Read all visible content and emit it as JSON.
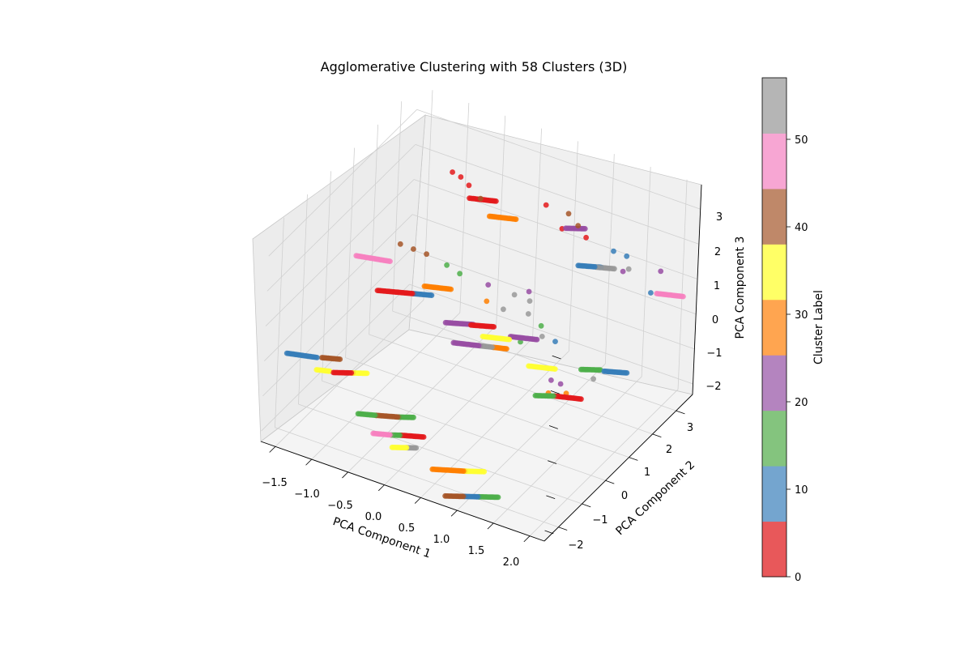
{
  "chart_data": {
    "type": "scatter",
    "projection": "3d",
    "title": "Agglomerative Clustering with 58 Clusters (3D)",
    "xlabel": "PCA Component 1",
    "ylabel": "PCA Component 2",
    "zlabel": "PCA Component 3",
    "x_ticks": [
      "−1.5",
      "−1.0",
      "−0.5",
      "0.0",
      "0.5",
      "1.0",
      "1.5",
      "2.0"
    ],
    "y_ticks": [
      "−2",
      "−1",
      "0",
      "1",
      "2",
      "3"
    ],
    "z_ticks": [
      "−2",
      "−1",
      "0",
      "1",
      "2",
      "3"
    ],
    "xlim": [
      -1.7,
      2.2
    ],
    "ylim": [
      -2.6,
      3.7
    ],
    "zlim": [
      -2.3,
      3.7
    ],
    "grid": true,
    "colormap": "Set1",
    "colorbar": {
      "label": "Cluster Label",
      "ticks": [
        "0",
        "10",
        "20",
        "30",
        "40",
        "50"
      ],
      "range": [
        0,
        57
      ],
      "colors": [
        "#e8585a",
        "#74a5cf",
        "#84c47e",
        "#b484bf",
        "#ffa550",
        "#ffff66",
        "#bf8869",
        "#f7a6d3",
        "#b5b5b5"
      ]
    },
    "cluster_colors": {
      "red": "#e41a1c",
      "blue": "#377eb8",
      "green": "#4daf4a",
      "purple": "#984ea3",
      "orange": "#ff7f00",
      "yellow": "#ffff33",
      "brown": "#a65628",
      "pink": "#f781bf",
      "grey": "#999999"
    },
    "segments": [
      {
        "color": "blue",
        "x": [
          -1.55,
          -1.2
        ],
        "y": [
          -2.1,
          -1.9
        ],
        "z": [
          0.0,
          0.0
        ]
      },
      {
        "color": "brown",
        "x": [
          -1.15,
          -0.95
        ],
        "y": [
          -1.85,
          -1.7
        ],
        "z": [
          0.0,
          0.0
        ]
      },
      {
        "color": "yellow",
        "x": [
          -1.2,
          -1.05
        ],
        "y": [
          -1.9,
          -1.8
        ],
        "z": [
          -0.35,
          -0.35
        ]
      },
      {
        "color": "red",
        "x": [
          -1.0,
          -0.8
        ],
        "y": [
          -1.8,
          -1.6
        ],
        "z": [
          -0.35,
          -0.35
        ]
      },
      {
        "color": "yellow",
        "x": [
          -0.8,
          -0.65
        ],
        "y": [
          -1.6,
          -1.45
        ],
        "z": [
          -0.35,
          -0.35
        ]
      },
      {
        "color": "green",
        "x": [
          -0.55,
          -0.35
        ],
        "y": [
          -2.1,
          -1.95
        ],
        "z": [
          -1.0,
          -1.0
        ]
      },
      {
        "color": "brown",
        "x": [
          -0.35,
          -0.1
        ],
        "y": [
          -1.95,
          -1.75
        ],
        "z": [
          -1.0,
          -1.0
        ]
      },
      {
        "color": "green",
        "x": [
          -0.1,
          0.05
        ],
        "y": [
          -1.75,
          -1.6
        ],
        "z": [
          -1.0,
          -1.0
        ]
      },
      {
        "color": "pink",
        "x": [
          -0.35,
          -0.15
        ],
        "y": [
          -2.05,
          -1.9
        ],
        "z": [
          -1.45,
          -1.45
        ]
      },
      {
        "color": "green",
        "x": [
          -0.15,
          -0.05
        ],
        "y": [
          -1.9,
          -1.8
        ],
        "z": [
          -1.45,
          -1.45
        ]
      },
      {
        "color": "red",
        "x": [
          -0.05,
          0.2
        ],
        "y": [
          -1.8,
          -1.6
        ],
        "z": [
          -1.45,
          -1.45
        ]
      },
      {
        "color": "yellow",
        "x": [
          -0.1,
          0.05
        ],
        "y": [
          -2.0,
          -1.85
        ],
        "z": [
          -1.7,
          -1.7
        ]
      },
      {
        "color": "grey",
        "x": [
          0.05,
          0.15
        ],
        "y": [
          -1.85,
          -1.75
        ],
        "z": [
          -1.7,
          -1.7
        ]
      },
      {
        "color": "orange",
        "x": [
          0.55,
          0.9
        ],
        "y": [
          -2.3,
          -2.0
        ],
        "z": [
          -1.65,
          -1.65
        ]
      },
      {
        "color": "yellow",
        "x": [
          0.9,
          1.1
        ],
        "y": [
          -2.0,
          -1.8
        ],
        "z": [
          -1.65,
          -1.65
        ]
      },
      {
        "color": "brown",
        "x": [
          0.8,
          1.0
        ],
        "y": [
          -2.5,
          -2.3
        ],
        "z": [
          -2.1,
          -2.1
        ]
      },
      {
        "color": "blue",
        "x": [
          1.0,
          1.15
        ],
        "y": [
          -2.3,
          -2.15
        ],
        "z": [
          -2.1,
          -2.1
        ]
      },
      {
        "color": "green",
        "x": [
          1.15,
          1.35
        ],
        "y": [
          -2.15,
          -1.95
        ],
        "z": [
          -2.1,
          -2.1
        ]
      },
      {
        "color": "pink",
        "x": [
          -1.4,
          -1.0
        ],
        "y": [
          0.3,
          0.5
        ],
        "z": [
          1.3,
          1.3
        ]
      },
      {
        "color": "red",
        "x": [
          -1.0,
          -0.6
        ],
        "y": [
          0.0,
          0.3
        ],
        "z": [
          0.8,
          0.8
        ]
      },
      {
        "color": "blue",
        "x": [
          -0.6,
          -0.4
        ],
        "y": [
          0.3,
          0.45
        ],
        "z": [
          0.8,
          0.8
        ]
      },
      {
        "color": "orange",
        "x": [
          -0.55,
          -0.25
        ],
        "y": [
          0.6,
          0.8
        ],
        "z": [
          0.85,
          0.85
        ]
      },
      {
        "color": "purple",
        "x": [
          -0.15,
          0.15
        ],
        "y": [
          0.3,
          0.55
        ],
        "z": [
          0.3,
          0.3
        ]
      },
      {
        "color": "red",
        "x": [
          0.15,
          0.4
        ],
        "y": [
          0.45,
          0.65
        ],
        "z": [
          0.35,
          0.35
        ]
      },
      {
        "color": "yellow",
        "x": [
          0.3,
          0.6
        ],
        "y": [
          0.5,
          0.7
        ],
        "z": [
          0.1,
          0.1
        ]
      },
      {
        "color": "purple",
        "x": [
          0.0,
          0.3
        ],
        "y": [
          0.2,
          0.4
        ],
        "z": [
          -0.1,
          -0.1
        ]
      },
      {
        "color": "grey",
        "x": [
          0.3,
          0.45
        ],
        "y": [
          0.4,
          0.5
        ],
        "z": [
          -0.1,
          -0.1
        ]
      },
      {
        "color": "orange",
        "x": [
          0.45,
          0.6
        ],
        "y": [
          0.5,
          0.6
        ],
        "z": [
          -0.1,
          -0.1
        ]
      },
      {
        "color": "purple",
        "x": [
          0.6,
          0.9
        ],
        "y": [
          0.75,
          0.95
        ],
        "z": [
          0.15,
          0.15
        ]
      },
      {
        "color": "yellow",
        "x": [
          1.0,
          1.3
        ],
        "y": [
          0.3,
          0.5
        ],
        "z": [
          -0.1,
          -0.1
        ]
      },
      {
        "color": "green",
        "x": [
          1.2,
          1.4
        ],
        "y": [
          0.0,
          0.2
        ],
        "z": [
          -0.6,
          -0.6
        ]
      },
      {
        "color": "red",
        "x": [
          1.4,
          1.7
        ],
        "y": [
          0.2,
          0.4
        ],
        "z": [
          -0.6,
          -0.6
        ]
      },
      {
        "color": "green",
        "x": [
          1.5,
          1.7
        ],
        "y": [
          1.0,
          1.2
        ],
        "z": [
          -0.3,
          -0.3
        ]
      },
      {
        "color": "blue",
        "x": [
          1.75,
          2.0
        ],
        "y": [
          1.2,
          1.4
        ],
        "z": [
          -0.3,
          -0.3
        ]
      },
      {
        "color": "red",
        "x": [
          -0.6,
          -0.3
        ],
        "y": [
          2.6,
          2.8
        ],
        "z": [
          2.0,
          2.0
        ]
      },
      {
        "color": "orange",
        "x": [
          -0.35,
          -0.05
        ],
        "y": [
          2.7,
          2.9
        ],
        "z": [
          1.6,
          1.6
        ]
      },
      {
        "color": "purple",
        "x": [
          0.6,
          0.8
        ],
        "y": [
          3.0,
          3.2
        ],
        "z": [
          1.75,
          1.75
        ]
      },
      {
        "color": "blue",
        "x": [
          0.85,
          1.1
        ],
        "y": [
          2.8,
          3.0
        ],
        "z": [
          1.0,
          1.0
        ]
      },
      {
        "color": "grey",
        "x": [
          1.05,
          1.25
        ],
        "y": [
          2.95,
          3.1
        ],
        "z": [
          1.0,
          1.0
        ]
      },
      {
        "color": "pink",
        "x": [
          1.9,
          2.2
        ],
        "y": [
          2.9,
          3.1
        ],
        "z": [
          0.9,
          0.9
        ]
      }
    ],
    "scattered": [
      {
        "color": "red",
        "x": -0.8,
        "y": 2.45,
        "z": 2.7
      },
      {
        "color": "red",
        "x": -0.7,
        "y": 2.5,
        "z": 2.6
      },
      {
        "color": "red",
        "x": -0.6,
        "y": 2.55,
        "z": 2.4
      },
      {
        "color": "brown",
        "x": -0.45,
        "y": 2.6,
        "z": 2.1
      },
      {
        "color": "red",
        "x": 0.35,
        "y": 2.9,
        "z": 2.3
      },
      {
        "color": "brown",
        "x": 0.6,
        "y": 3.1,
        "z": 2.1
      },
      {
        "color": "red",
        "x": 0.55,
        "y": 3.0,
        "z": 1.7
      },
      {
        "color": "brown",
        "x": 0.75,
        "y": 3.05,
        "z": 1.9
      },
      {
        "color": "red",
        "x": 0.85,
        "y": 3.1,
        "z": 1.6
      },
      {
        "color": "blue",
        "x": 1.2,
        "y": 3.2,
        "z": 1.4
      },
      {
        "color": "blue",
        "x": 1.35,
        "y": 3.3,
        "z": 1.3
      },
      {
        "color": "grey",
        "x": 1.4,
        "y": 3.25,
        "z": 1.0
      },
      {
        "color": "purple",
        "x": 1.4,
        "y": 3.0,
        "z": 1.1
      },
      {
        "color": "purple",
        "x": 1.85,
        "y": 3.2,
        "z": 1.3
      },
      {
        "color": "blue",
        "x": 1.85,
        "y": 2.8,
        "z": 0.95
      },
      {
        "color": "brown",
        "x": -0.9,
        "y": 0.6,
        "z": 1.8
      },
      {
        "color": "brown",
        "x": -0.75,
        "y": 0.7,
        "z": 1.7
      },
      {
        "color": "brown",
        "x": -0.6,
        "y": 0.8,
        "z": 1.6
      },
      {
        "color": "green",
        "x": -0.35,
        "y": 0.9,
        "z": 1.4
      },
      {
        "color": "green",
        "x": -0.2,
        "y": 1.0,
        "z": 1.2
      },
      {
        "color": "purple",
        "x": 0.1,
        "y": 1.3,
        "z": 0.9
      },
      {
        "color": "grey",
        "x": 0.4,
        "y": 1.5,
        "z": 0.7
      },
      {
        "color": "purple",
        "x": 0.55,
        "y": 1.65,
        "z": 0.8
      },
      {
        "color": "grey",
        "x": 0.6,
        "y": 1.5,
        "z": 0.3
      },
      {
        "color": "green",
        "x": 0.75,
        "y": 1.6,
        "z": 0.0
      },
      {
        "color": "grey",
        "x": 0.8,
        "y": 1.5,
        "z": -0.2
      },
      {
        "color": "green",
        "x": 0.6,
        "y": 1.2,
        "z": -0.3
      },
      {
        "color": "blue",
        "x": 0.95,
        "y": 1.6,
        "z": -0.3
      },
      {
        "color": "purple",
        "x": 1.1,
        "y": 1.0,
        "z": -0.9
      },
      {
        "color": "purple",
        "x": 1.2,
        "y": 1.1,
        "z": -1.0
      },
      {
        "color": "grey",
        "x": 1.55,
        "y": 1.4,
        "z": -0.8
      },
      {
        "color": "orange",
        "x": 1.25,
        "y": 1.2,
        "z": -1.3
      },
      {
        "color": "orange",
        "x": 1.1,
        "y": 0.9,
        "z": -1.2
      },
      {
        "color": "grey",
        "x": 0.55,
        "y": 1.7,
        "z": 0.5
      },
      {
        "color": "orange",
        "x": 0.15,
        "y": 1.1,
        "z": 0.6
      },
      {
        "color": "grey",
        "x": 0.35,
        "y": 1.2,
        "z": 0.45
      }
    ]
  }
}
